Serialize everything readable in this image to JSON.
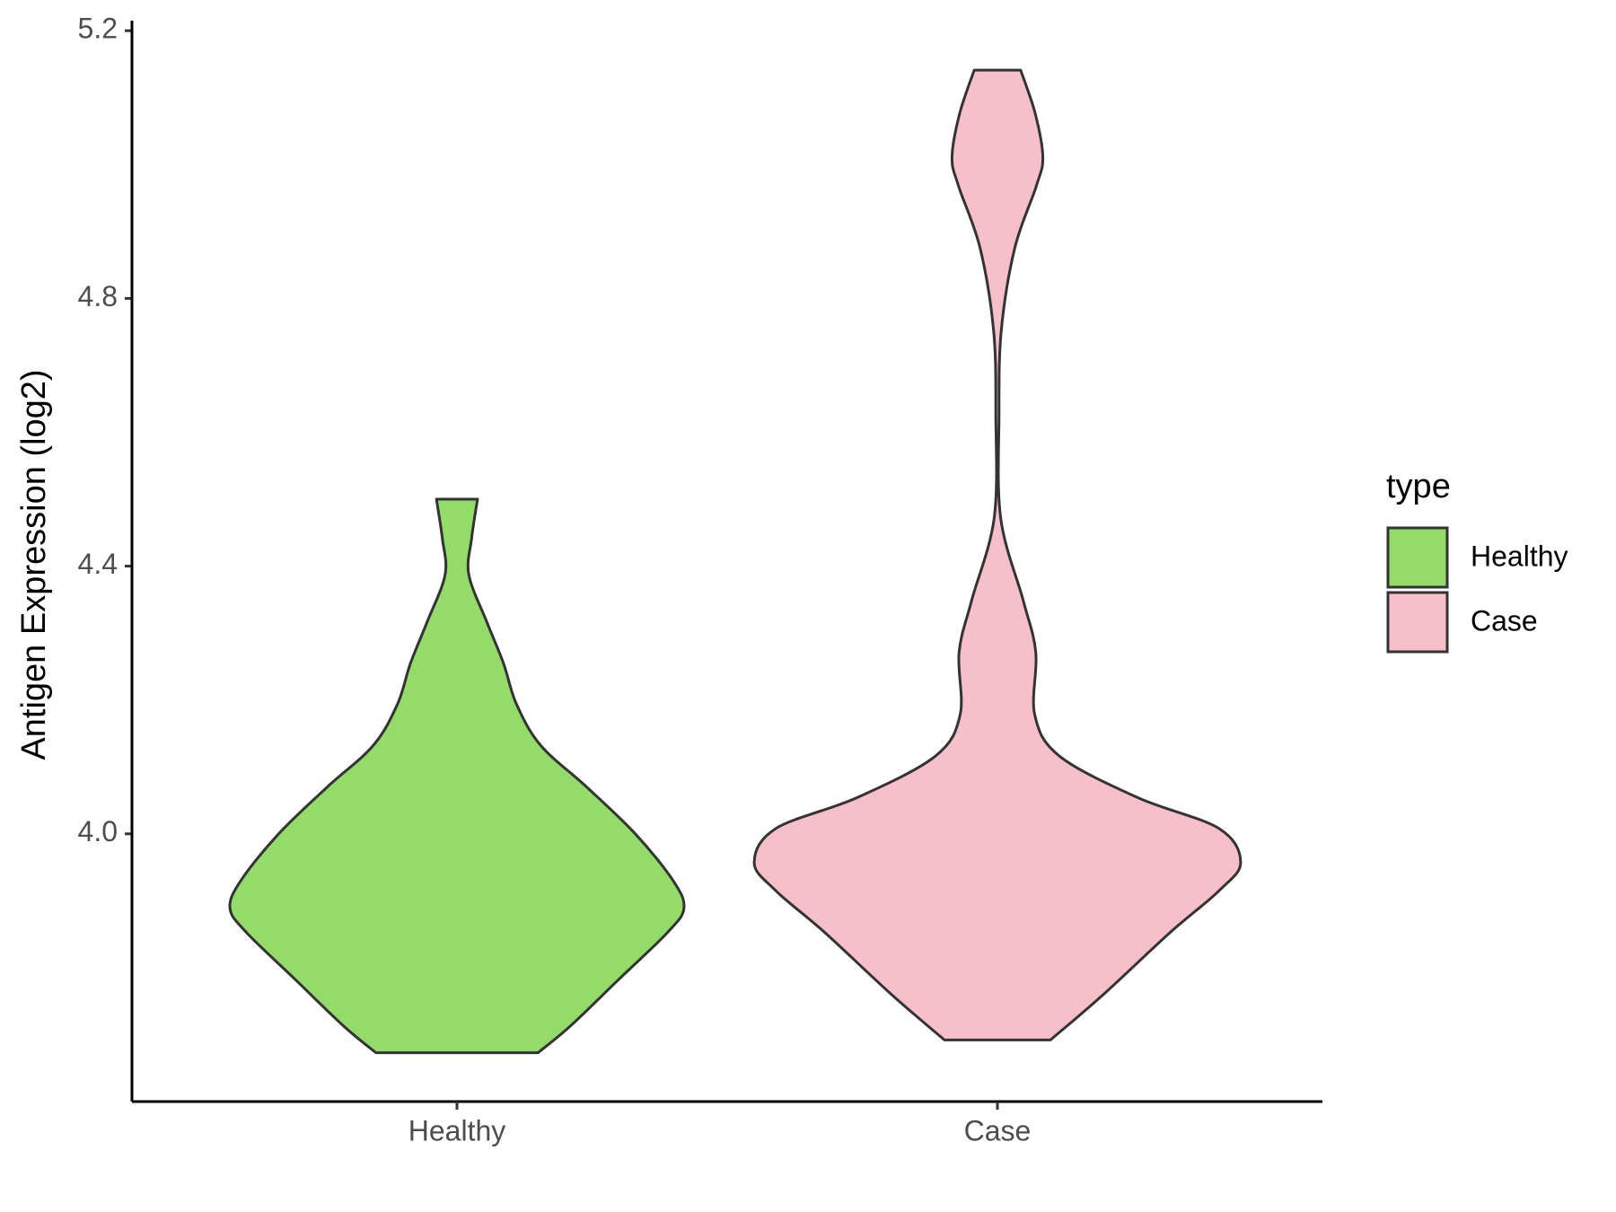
{
  "chart_data": {
    "type": "violin",
    "y_label": "Antigen Expression (log2)",
    "categories": [
      "Healthy",
      "Case"
    ],
    "legend_title": "type",
    "ylim": [
      3.6,
      5.215
    ],
    "yticks": [
      {
        "value": 4.0,
        "label": "4.0"
      },
      4.4,
      4.8,
      5.2
    ],
    "series": [
      {
        "name": "Healthy",
        "color": "#93dc6a",
        "values": [
          3.673,
          3.713,
          3.783,
          3.853,
          3.889,
          3.93,
          4.0,
          4.07,
          4.132,
          4.194,
          4.255,
          4.317,
          4.387,
          4.441,
          4.5
        ],
        "widths": [
          0.15,
          0.21,
          0.3,
          0.39,
          0.42,
          0.4,
          0.33,
          0.24,
          0.155,
          0.11,
          0.086,
          0.055,
          0.022,
          0.027,
          0.038
        ]
      },
      {
        "name": "Case",
        "color": "#f7bfca",
        "values": [
          3.692,
          3.76,
          3.853,
          3.915,
          3.957,
          4.008,
          4.054,
          4.116,
          4.178,
          4.271,
          4.348,
          4.472,
          4.627,
          4.751,
          4.875,
          4.968,
          5.011,
          5.076,
          5.141
        ],
        "widths": [
          0.098,
          0.196,
          0.32,
          0.41,
          0.45,
          0.41,
          0.26,
          0.115,
          0.069,
          0.071,
          0.048,
          0.006,
          0.003,
          0.007,
          0.032,
          0.072,
          0.084,
          0.07,
          0.043
        ]
      }
    ]
  }
}
